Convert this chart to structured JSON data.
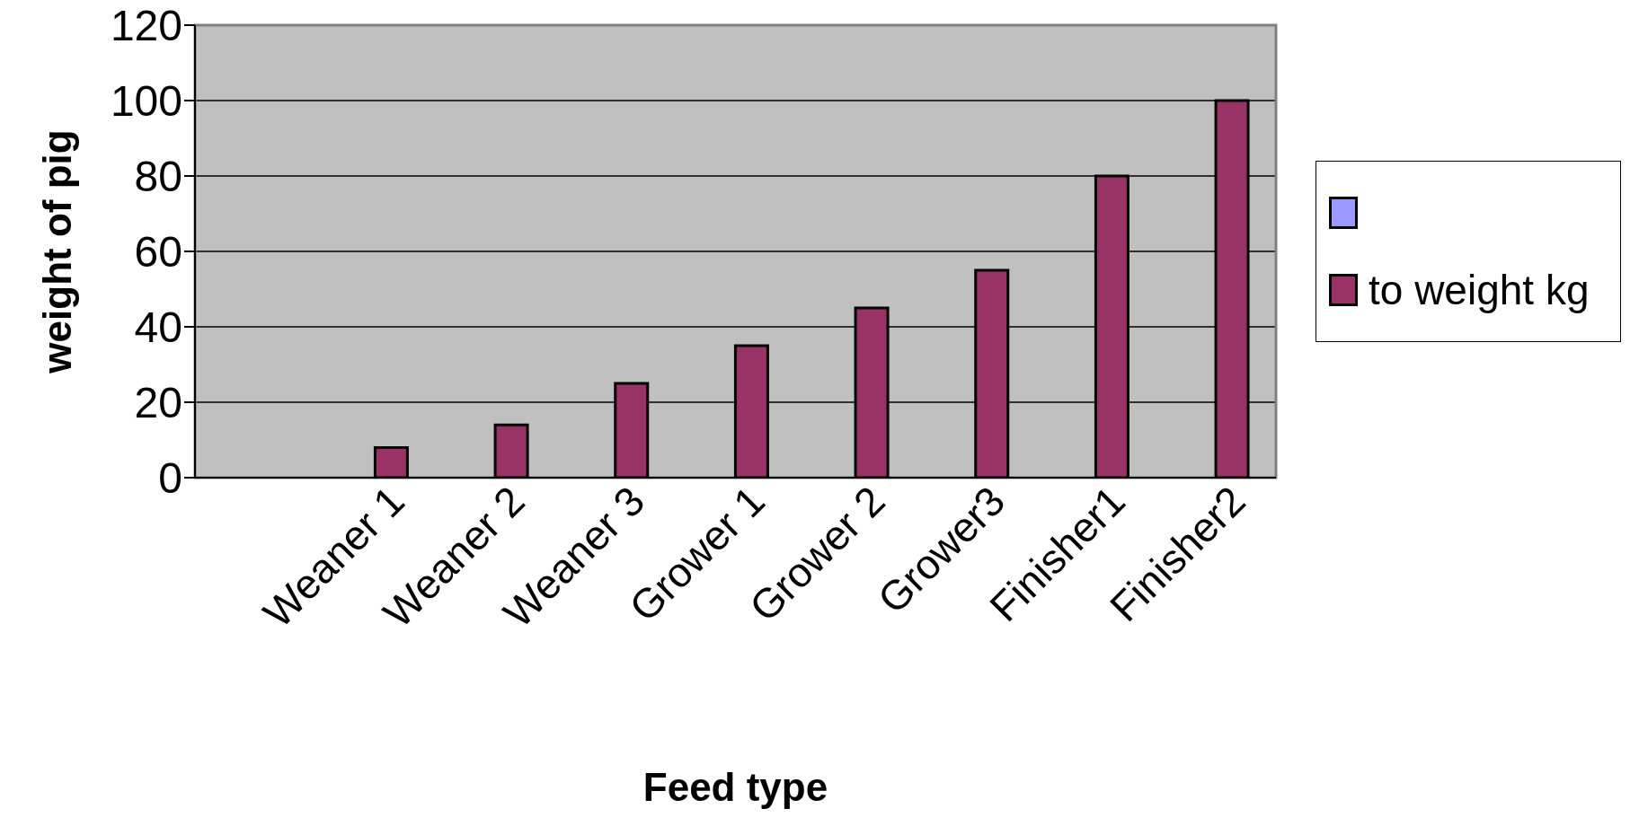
{
  "chart_data": {
    "type": "bar",
    "xlabel": "Feed type",
    "ylabel": "weight of pig",
    "categories": [
      null,
      "Weaner 1",
      "Weaner 2",
      "Weaner 3",
      "Grower 1",
      "Grower 2",
      "Grower3",
      "Finisher1",
      "Finisher2"
    ],
    "series": [
      {
        "color": "#9999ff",
        "values": [
          null,
          null,
          null,
          null,
          null,
          null,
          null,
          null,
          null
        ]
      },
      {
        "name": "to weight kg",
        "color": "#993366",
        "values": [
          null,
          8,
          14,
          25,
          35,
          45,
          55,
          80,
          100
        ]
      }
    ],
    "ylim": [
      0,
      120
    ],
    "yticks": [
      0,
      20,
      40,
      60,
      80,
      100,
      120
    ],
    "grid": "y",
    "legend": "right"
  }
}
